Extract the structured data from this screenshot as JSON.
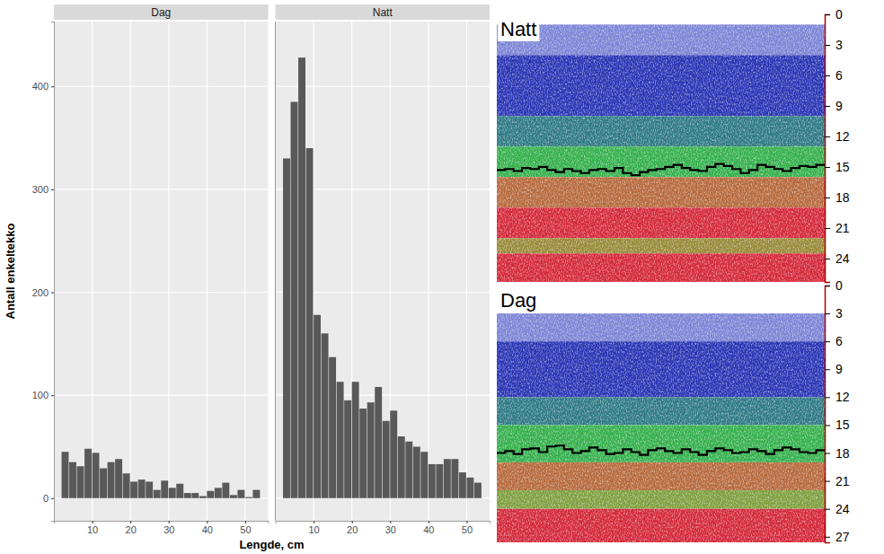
{
  "chart_data": [
    {
      "type": "histogram",
      "xlabel": "Lengde, cm",
      "ylabel": "Antall enkeltekko",
      "bins": [
        2,
        4,
        6,
        8,
        10,
        12,
        14,
        16,
        18,
        20,
        22,
        24,
        26,
        28,
        30,
        32,
        34,
        36,
        38,
        40,
        42,
        44,
        46,
        48,
        50,
        52,
        54
      ],
      "series": [
        {
          "name": "Dag",
          "color": "#595959",
          "values": [
            45,
            35,
            31,
            48,
            44,
            29,
            35,
            38,
            24,
            16,
            18,
            16,
            8,
            17,
            10,
            14,
            5,
            5,
            2,
            7,
            10,
            15,
            3,
            8,
            1,
            8
          ]
        },
        {
          "name": "Natt",
          "color": "#595959",
          "values": [
            330,
            385,
            428,
            340,
            178,
            160,
            137,
            113,
            95,
            113,
            87,
            93,
            108,
            75,
            85,
            60,
            55,
            50,
            45,
            33,
            33,
            38,
            38,
            25,
            20,
            15
          ]
        }
      ],
      "xlim": [
        0,
        56
      ],
      "xticks": [
        10,
        20,
        30,
        40,
        50
      ],
      "ylim": [
        -22,
        463
      ],
      "yticks": [
        0,
        100,
        200,
        300,
        400
      ],
      "grid": true
    },
    {
      "type": "echogram",
      "title": "Natt",
      "ylim": [
        0,
        26.3
      ],
      "yticks": [
        0,
        3,
        6,
        9,
        12,
        15,
        18,
        21,
        24
      ],
      "layers": [
        {
          "from": 0,
          "to": 1,
          "color": "#ffffff"
        },
        {
          "from": 1,
          "to": 4,
          "color": "#7d86d6"
        },
        {
          "from": 4,
          "to": 10,
          "color": "#2b36b5"
        },
        {
          "from": 10,
          "to": 13,
          "color": "#2f7a86"
        },
        {
          "from": 13,
          "to": 16,
          "color": "#35b04d"
        },
        {
          "from": 16,
          "to": 19,
          "color": "#b76a3e"
        },
        {
          "from": 19,
          "to": 22,
          "color": "#d42a3c"
        },
        {
          "from": 22,
          "to": 23.5,
          "color": "#9a8a3a"
        },
        {
          "from": 23.5,
          "to": 26.3,
          "color": "#d42a3c"
        }
      ],
      "line": {
        "color": "#000000",
        "values": [
          15.3,
          15.2,
          15.4,
          15.1,
          15.2,
          15.0,
          15.3,
          15.5,
          15.2,
          15.4,
          15.6,
          15.3,
          15.2,
          15.4,
          15.1,
          15.6,
          15.8,
          15.5,
          15.3,
          15.2,
          15.0,
          14.8,
          15.1,
          15.3,
          15.4,
          15.0,
          14.7,
          14.9,
          15.2,
          15.6,
          15.3,
          14.8,
          15.0,
          15.2,
          15.4,
          15.1,
          14.9,
          15.0,
          14.8,
          14.9
        ]
      }
    },
    {
      "type": "echogram",
      "title": "Dag",
      "ylim": [
        0,
        27.6
      ],
      "yticks": [
        0,
        3,
        6,
        9,
        12,
        15,
        18,
        21,
        24,
        27
      ],
      "layers": [
        {
          "from": 0,
          "to": 3,
          "color": "#ffffff"
        },
        {
          "from": 3,
          "to": 6,
          "color": "#7d86d6"
        },
        {
          "from": 6,
          "to": 12,
          "color": "#2b36b5"
        },
        {
          "from": 12,
          "to": 15,
          "color": "#2f7a86"
        },
        {
          "from": 15,
          "to": 19,
          "color": "#35b04d"
        },
        {
          "from": 19,
          "to": 22,
          "color": "#b76a3e"
        },
        {
          "from": 22,
          "to": 24,
          "color": "#7fa040"
        },
        {
          "from": 24,
          "to": 27.6,
          "color": "#d42a3c"
        }
      ],
      "line": {
        "color": "#000000",
        "values": [
          18.0,
          17.8,
          18.1,
          17.6,
          17.5,
          17.9,
          17.3,
          17.2,
          17.6,
          18.0,
          17.8,
          17.4,
          17.7,
          18.1,
          18.0,
          17.6,
          17.9,
          18.2,
          17.7,
          17.5,
          17.8,
          18.0,
          17.6,
          17.9,
          18.2,
          17.8,
          17.5,
          17.7,
          18.0,
          17.9,
          17.6,
          17.8,
          18.1,
          17.7,
          17.4,
          17.6,
          17.9,
          18.0,
          17.7,
          17.8
        ]
      }
    }
  ]
}
